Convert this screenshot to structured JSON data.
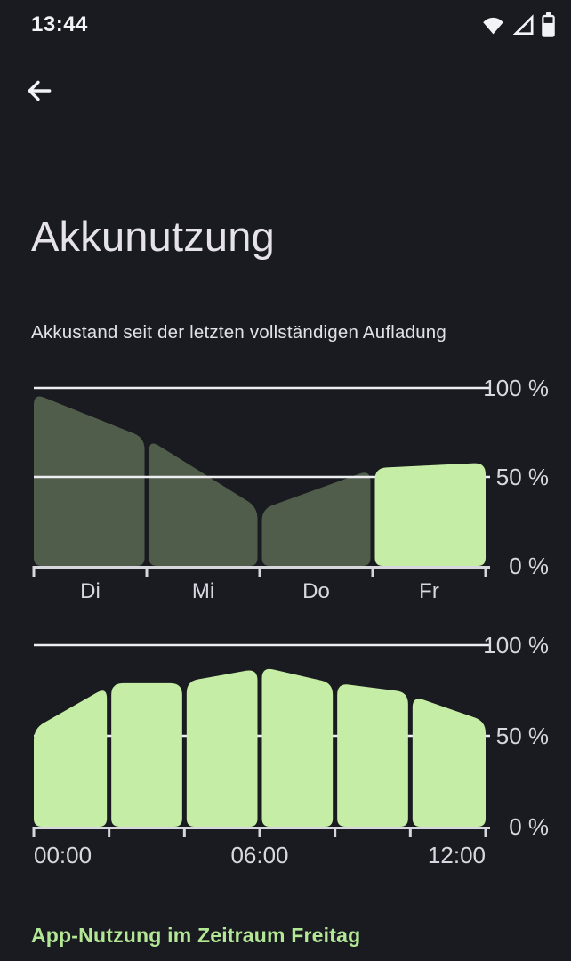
{
  "status_bar": {
    "time": "13:44",
    "icons": [
      "wifi-icon",
      "cellular-signal-icon",
      "battery-icon"
    ]
  },
  "header": {
    "back_label": "Zurück",
    "title": "Akkunutzung"
  },
  "subtitle": "Akkustand seit der letzten vollständigen Aufladung",
  "footer": {
    "heading": "App-Nutzung im Zeitraum Freitag"
  },
  "colors": {
    "background": "#191b20",
    "past_fill": "#515d4b",
    "current_fill": "#c6eda5",
    "grid": "#eceef2",
    "axis": "#d5d7dc",
    "text_axis": "#d7d9e0",
    "text_primary": "#e5e3e9",
    "accent_green": "#b3e795"
  },
  "chart_data": [
    {
      "type": "area",
      "name": "battery-level-by-day",
      "title": "Akkustand seit der letzten vollständigen Aufladung",
      "unit": "%",
      "ylim": [
        0,
        100
      ],
      "grid": "100-and-50-lines",
      "legend": "none",
      "yticks": [
        {
          "value": 100,
          "label": "100 %"
        },
        {
          "value": 50,
          "label": "50 %"
        },
        {
          "value": 0,
          "label": "0 %"
        }
      ],
      "categories": [
        "Di",
        "Mi",
        "Do",
        "Fr"
      ],
      "segments": [
        {
          "label": "Di",
          "start": 97,
          "end": 72,
          "state": "past"
        },
        {
          "label": "Mi",
          "start": 71,
          "end": 33,
          "state": "past"
        },
        {
          "label": "Do",
          "start": 32,
          "end": 54,
          "state": "past"
        },
        {
          "label": "Fr",
          "start": 55,
          "end": 58,
          "state": "current"
        }
      ],
      "x_labels": [
        {
          "text": "Di",
          "seg": 0,
          "anchor": "middle"
        },
        {
          "text": "Mi",
          "seg": 1,
          "anchor": "middle"
        },
        {
          "text": "Do",
          "seg": 2,
          "anchor": "middle"
        },
        {
          "text": "Fr",
          "seg": 3,
          "anchor": "middle"
        }
      ]
    },
    {
      "type": "area",
      "name": "battery-level-today",
      "title": "",
      "unit": "%",
      "ylim": [
        0,
        100
      ],
      "grid": "100-line-50-ticks",
      "legend": "none",
      "yticks": [
        {
          "value": 100,
          "label": "100 %"
        },
        {
          "value": 50,
          "label": "50 %"
        },
        {
          "value": 0,
          "label": "0 %"
        }
      ],
      "categories": [
        "00:00",
        "06:00",
        "12:00"
      ],
      "segments": [
        {
          "start": 54,
          "end": 77,
          "state": "current"
        },
        {
          "start": 79,
          "end": 79,
          "state": "current"
        },
        {
          "start": 80,
          "end": 87,
          "state": "current"
        },
        {
          "start": 88,
          "end": 79,
          "state": "current"
        },
        {
          "start": 79,
          "end": 74,
          "state": "current"
        },
        {
          "start": 72,
          "end": 58,
          "state": "current"
        }
      ],
      "x_labels": [
        {
          "text": "00:00",
          "tick": 0,
          "anchor": "start"
        },
        {
          "text": "06:00",
          "tick": 3,
          "anchor": "middle"
        },
        {
          "text": "12:00",
          "tick": 6,
          "anchor": "end"
        }
      ]
    }
  ]
}
